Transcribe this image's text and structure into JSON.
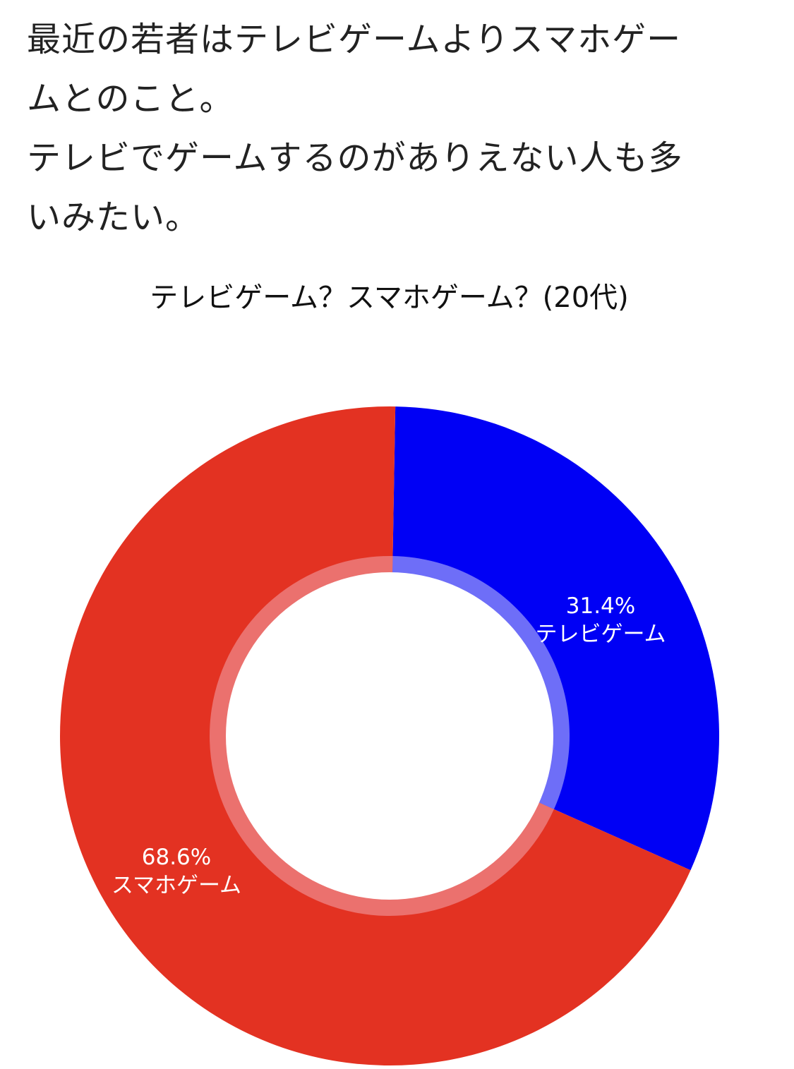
{
  "text": {
    "lines": [
      "最近の若者はテレビゲームよりスマホゲー",
      "ムとのこと。",
      "テレビでゲームするのがありえない人も多",
      "いみたい。"
    ]
  },
  "colors": {
    "tv": "#0000f5",
    "smartphone": "#e33222",
    "tv_inner": "#6e6ef8",
    "smartphone_inner": "#eb716e"
  },
  "chart_data": {
    "type": "pie",
    "title": "テレビゲーム？スマホゲーム？(20代)",
    "slices": [
      {
        "label": "テレビゲーム",
        "value": 31.4,
        "value_label": "31.4%",
        "color": "#0000f5"
      },
      {
        "label": "スマホゲーム",
        "value": 68.6,
        "value_label": "68.6%",
        "color": "#e33222"
      }
    ]
  }
}
